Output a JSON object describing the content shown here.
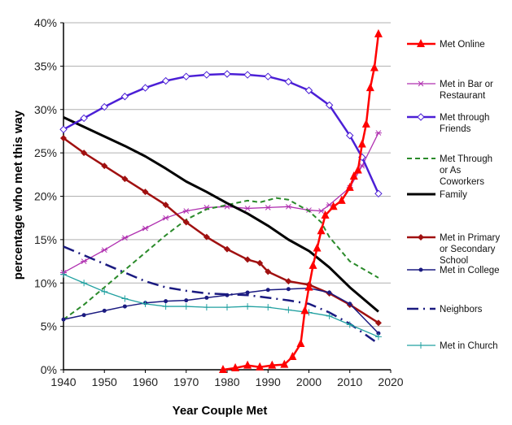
{
  "chart_data": {
    "type": "line",
    "title": "",
    "xlabel": "Year Couple Met",
    "ylabel": "percentage who met this way",
    "xlim": [
      1940,
      2020
    ],
    "ylim": [
      0,
      40
    ],
    "xticks": [
      "1940",
      "1950",
      "1960",
      "1970",
      "1980",
      "1990",
      "2000",
      "2010",
      "2020"
    ],
    "yticks": [
      "0%",
      "5%",
      "10%",
      "15%",
      "20%",
      "25%",
      "30%",
      "35%",
      "40%"
    ],
    "grid": "horizontal",
    "legend": "right",
    "series": [
      {
        "name": "Met Online",
        "legend_lines": [
          "Met Online"
        ],
        "color": "#ff0000",
        "width": 2.5,
        "dash": "",
        "marker": "triangle",
        "x": [
          1979,
          1982,
          1985,
          1988,
          1991,
          1994,
          1996,
          1998,
          1999,
          2000,
          2001,
          2002,
          2003,
          2004,
          2006,
          2008,
          2010,
          2011,
          2012,
          2013,
          2014,
          2015,
          2016,
          2017
        ],
        "y": [
          0,
          0.2,
          0.5,
          0.3,
          0.5,
          0.6,
          1.5,
          3,
          6.8,
          9.5,
          12,
          14,
          16,
          17.8,
          18.8,
          19.5,
          21,
          22.3,
          23,
          26,
          28.3,
          32.5,
          34.8,
          38.7
        ]
      },
      {
        "name": "Met in Bar or Restaurant",
        "legend_lines": [
          "Met in Bar or",
          "Restaurant"
        ],
        "color": "#b030b0",
        "width": 1.3,
        "dash": "",
        "marker": "star",
        "x": [
          1940,
          1945,
          1950,
          1955,
          1960,
          1965,
          1970,
          1975,
          1980,
          1985,
          1990,
          1995,
          2000,
          2003,
          2005,
          2010,
          2013,
          2017
        ],
        "y": [
          11.2,
          12.5,
          13.8,
          15.2,
          16.3,
          17.5,
          18.3,
          18.7,
          18.8,
          18.6,
          18.7,
          18.8,
          18.4,
          18.3,
          19,
          21,
          23.5,
          27.3
        ]
      },
      {
        "name": "Met through Friends",
        "legend_lines": [
          "Met through",
          "Friends"
        ],
        "color": "#4b1fd6",
        "width": 2.5,
        "dash": "",
        "marker": "open-diamond",
        "x": [
          1940,
          1945,
          1950,
          1955,
          1960,
          1965,
          1970,
          1975,
          1980,
          1985,
          1990,
          1995,
          2000,
          2005,
          2010,
          2013,
          2017
        ],
        "y": [
          27.7,
          29,
          30.3,
          31.5,
          32.5,
          33.3,
          33.8,
          34,
          34.1,
          34,
          33.8,
          33.2,
          32.2,
          30.5,
          27,
          24.5,
          20.3
        ]
      },
      {
        "name": "Met Through or As Coworkers",
        "legend_lines": [
          "Met Through",
          "or As",
          "Coworkers"
        ],
        "color": "#2a8a2a",
        "width": 2,
        "dash": "6,4",
        "marker": "none",
        "x": [
          1940,
          1945,
          1950,
          1955,
          1960,
          1965,
          1970,
          1975,
          1980,
          1985,
          1988,
          1992,
          1995,
          2000,
          2003,
          2005,
          2010,
          2017
        ],
        "y": [
          5.8,
          7.5,
          9.5,
          11.5,
          13.5,
          15.5,
          17.3,
          18.5,
          19,
          19.5,
          19.3,
          19.8,
          19.6,
          18.3,
          17,
          15.3,
          12.5,
          10.6
        ]
      },
      {
        "name": "Family",
        "legend_lines": [
          "Family"
        ],
        "color": "#000000",
        "width": 3,
        "dash": "",
        "marker": "none",
        "x": [
          1940,
          1945,
          1950,
          1955,
          1960,
          1965,
          1970,
          1975,
          1980,
          1985,
          1990,
          1995,
          2000,
          2005,
          2010,
          2017
        ],
        "y": [
          29.1,
          28,
          26.9,
          25.8,
          24.6,
          23.2,
          21.7,
          20.5,
          19.2,
          18,
          16.6,
          15,
          13.7,
          11.8,
          9.5,
          6.7
        ]
      },
      {
        "name": "Met in Primary or Secondary School",
        "legend_lines": [
          "Met in Primary",
          "or Secondary",
          "School"
        ],
        "color": "#a01010",
        "width": 2.5,
        "dash": "",
        "marker": "diamond",
        "x": [
          1940,
          1945,
          1950,
          1955,
          1960,
          1965,
          1970,
          1975,
          1980,
          1985,
          1988,
          1990,
          1995,
          2000,
          2005,
          2010,
          2017
        ],
        "y": [
          26.7,
          25,
          23.5,
          22,
          20.5,
          19,
          17,
          15.3,
          13.9,
          12.7,
          12.3,
          11.3,
          10.2,
          9.8,
          8.8,
          7.5,
          5.4
        ]
      },
      {
        "name": "Met in College",
        "legend_lines": [
          "Met in College"
        ],
        "color": "#1a1a80",
        "width": 1.5,
        "dash": "",
        "marker": "dot",
        "x": [
          1940,
          1945,
          1950,
          1955,
          1960,
          1965,
          1970,
          1975,
          1980,
          1985,
          1990,
          1995,
          2000,
          2005,
          2010,
          2017
        ],
        "y": [
          5.8,
          6.3,
          6.8,
          7.3,
          7.7,
          7.9,
          8,
          8.3,
          8.6,
          8.9,
          9.2,
          9.3,
          9.4,
          8.9,
          7.6,
          4.2
        ]
      },
      {
        "name": "Neighbors",
        "legend_lines": [
          "Neighbors"
        ],
        "color": "#1a1a80",
        "width": 2.5,
        "dash": "14,6,2,6",
        "marker": "none",
        "x": [
          1940,
          1945,
          1950,
          1955,
          1960,
          1965,
          1970,
          1975,
          1980,
          1985,
          1990,
          1995,
          2000,
          2005,
          2010,
          2017
        ],
        "y": [
          14.2,
          13.2,
          12.2,
          11.2,
          10.2,
          9.5,
          9.1,
          8.8,
          8.7,
          8.6,
          8.3,
          8,
          7.6,
          6.6,
          5.3,
          3
        ]
      },
      {
        "name": "Met in Church",
        "legend_lines": [
          "Met in Church"
        ],
        "color": "#20a0a0",
        "width": 1.3,
        "dash": "",
        "marker": "plus",
        "x": [
          1940,
          1945,
          1950,
          1955,
          1960,
          1965,
          1970,
          1975,
          1980,
          1985,
          1990,
          1995,
          2000,
          2005,
          2010,
          2017
        ],
        "y": [
          11,
          10,
          9,
          8.2,
          7.6,
          7.3,
          7.3,
          7.2,
          7.2,
          7.3,
          7.2,
          6.9,
          6.6,
          6.2,
          5.2,
          3.8
        ]
      }
    ]
  }
}
